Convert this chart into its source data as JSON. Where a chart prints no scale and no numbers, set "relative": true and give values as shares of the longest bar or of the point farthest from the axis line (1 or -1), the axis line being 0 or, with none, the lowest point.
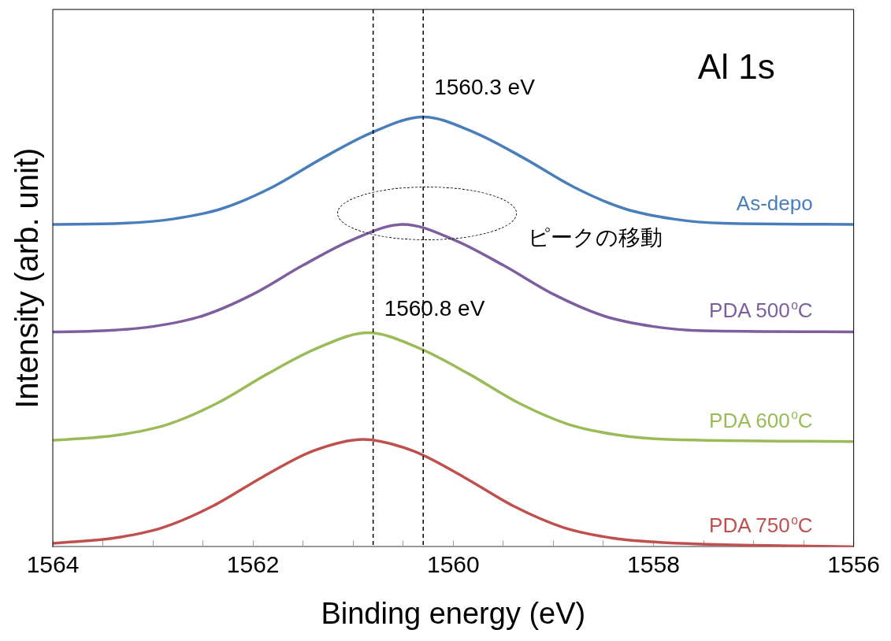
{
  "chart_data": {
    "type": "line",
    "title": "Al 1s",
    "xlabel": "Binding energy (eV)",
    "ylabel": "Intensity (arb. unit)",
    "relative": true,
    "grid": false,
    "legend": false,
    "marker": "none",
    "line_style": "solid",
    "xlim": [
      1564,
      1556
    ],
    "xticks": [
      1564,
      {
        "value": 1563.5,
        "label": null
      },
      {
        "value": 1563,
        "label": null
      },
      {
        "value": 1562.5,
        "label": null
      },
      1562,
      {
        "value": 1561.5,
        "label": null
      },
      {
        "value": 1561,
        "label": null
      },
      {
        "value": 1560.5,
        "label": null
      },
      1560,
      {
        "value": 1559.5,
        "label": null
      },
      {
        "value": 1559,
        "label": null
      },
      {
        "value": 1558.5,
        "label": null
      },
      1558,
      {
        "value": 1557.5,
        "label": null
      },
      {
        "value": 1557,
        "label": null
      },
      {
        "value": 1556.5,
        "label": null
      },
      1556
    ],
    "series": [
      {
        "name": "As-depo",
        "color": "#4a7ebb",
        "x": [
          1564,
          1563.3,
          1562.8,
          1562.3,
          1561.8,
          1561.3,
          1560.8,
          1560.3,
          1559.8,
          1559.3,
          1558.8,
          1558.3,
          1557.8,
          1557.3,
          1556
        ],
        "values": [
          0.75,
          0.7525,
          0.7625,
          0.7875,
          0.8375,
          0.905,
          0.965,
          1.0,
          0.965,
          0.905,
          0.8375,
          0.7875,
          0.7625,
          0.7525,
          0.75
        ]
      },
      {
        "name": "PDA 500$^{o}$C",
        "color": "#7d5fa0",
        "x": [
          1564,
          1563.5,
          1563,
          1562.5,
          1562,
          1561.5,
          1561,
          1560.5,
          1560,
          1559.5,
          1559,
          1558.5,
          1558,
          1557.5,
          1556
        ],
        "values": [
          0.5,
          0.5025,
          0.5125,
          0.5375,
          0.5875,
          0.655,
          0.715,
          0.75,
          0.715,
          0.655,
          0.5875,
          0.5375,
          0.5125,
          0.5025,
          0.5
        ]
      },
      {
        "name": "PDA 600$^{o}$C",
        "color": "#9bbb59",
        "x": [
          1564,
          1563.85,
          1563.35,
          1562.85,
          1562.35,
          1561.85,
          1561.35,
          1560.85,
          1560.35,
          1559.85,
          1559.35,
          1558.85,
          1558.35,
          1557.85,
          1556
        ],
        "values": [
          0.248,
          0.25,
          0.26,
          0.285,
          0.335,
          0.403,
          0.463,
          0.498,
          0.463,
          0.403,
          0.335,
          0.285,
          0.26,
          0.25,
          0.245
        ]
      },
      {
        "name": "PDA 750$^{o}$C",
        "color": "#c0504d",
        "x": [
          1564,
          1563.9,
          1563.4,
          1562.9,
          1562.4,
          1561.9,
          1561.4,
          1560.9,
          1560.4,
          1559.9,
          1559.4,
          1558.9,
          1558.4,
          1557.9,
          1556
        ],
        "values": [
          0.008,
          0.01,
          0.02,
          0.045,
          0.095,
          0.163,
          0.223,
          0.25,
          0.223,
          0.163,
          0.095,
          0.045,
          0.02,
          0.01,
          0.0
        ]
      }
    ],
    "ref_lines": [
      {
        "axis": "x",
        "value": 1560.3,
        "label": "1560.3 eV",
        "color": "#000000",
        "line_style": "dashed"
      },
      {
        "axis": "x",
        "value": 1560.8,
        "label": "1560.8 eV",
        "color": "#000000",
        "line_style": "dashed"
      }
    ],
    "annotations": [
      "ピークの移動"
    ]
  }
}
